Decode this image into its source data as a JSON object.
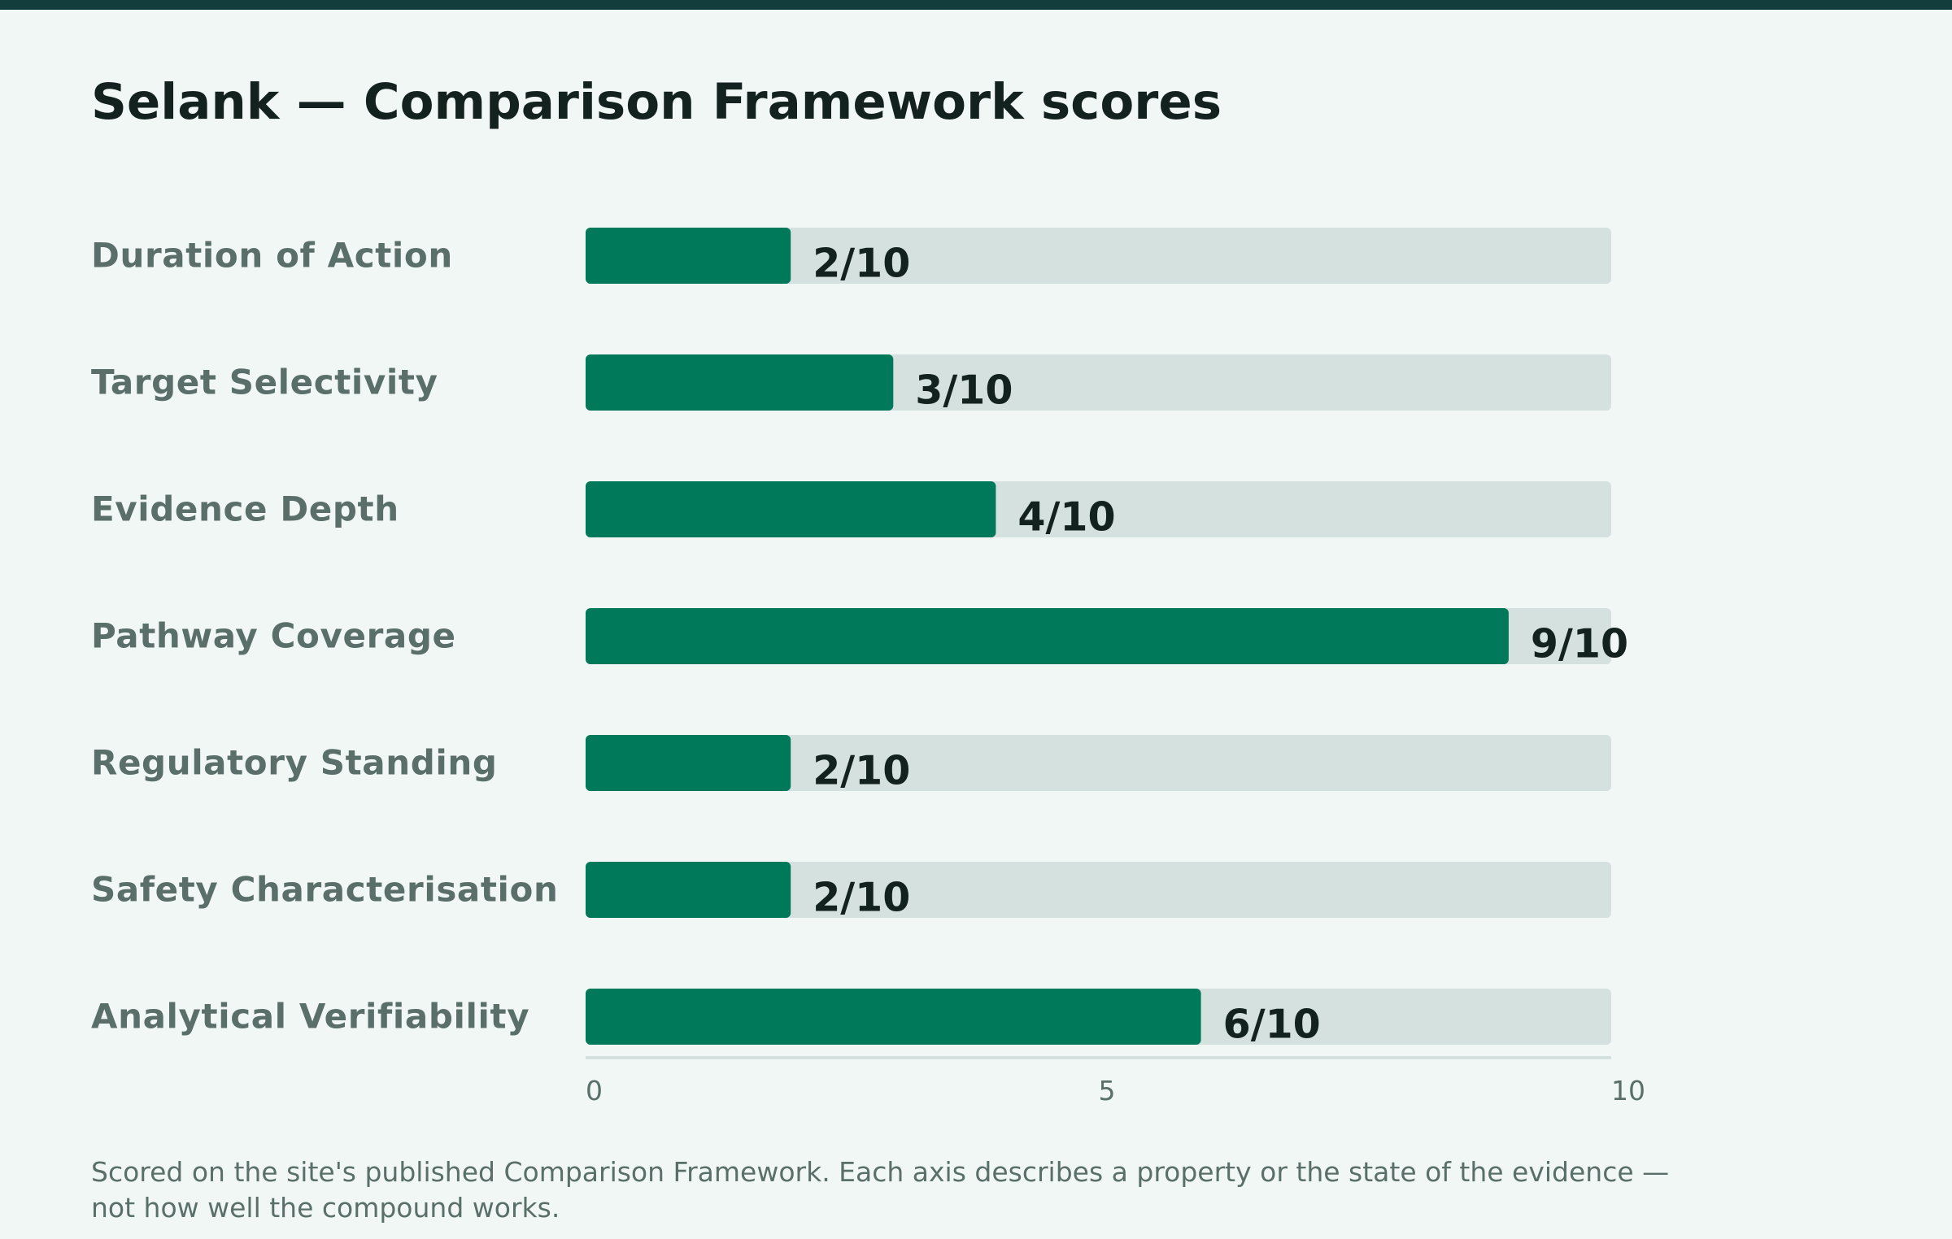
{
  "chart_data": {
    "type": "bar",
    "orientation": "horizontal",
    "title": "Selank — Comparison Framework scores",
    "categories": [
      "Duration of Action",
      "Target Selectivity",
      "Evidence Depth",
      "Pathway Coverage",
      "Regulatory Standing",
      "Safety Characterisation",
      "Analytical Verifiability"
    ],
    "values": [
      2,
      3,
      4,
      9,
      2,
      2,
      6
    ],
    "value_labels": [
      "2/10",
      "3/10",
      "4/10",
      "9/10",
      "2/10",
      "2/10",
      "6/10"
    ],
    "xlim": [
      0,
      10
    ],
    "x_ticks": [
      0,
      5,
      10
    ],
    "x_tick_labels": [
      "0",
      "5",
      "10"
    ],
    "grid": false,
    "legend": "none",
    "colors": {
      "bar": "#00785a",
      "track": "#d4e1de",
      "axis": "#d4e1de",
      "top_bar": "#123d3c",
      "background": "#f1f7f5"
    },
    "footnote": "Scored on the site's published Comparison Framework. Each axis describes a property or the state of the evidence — not how well the compound works."
  }
}
